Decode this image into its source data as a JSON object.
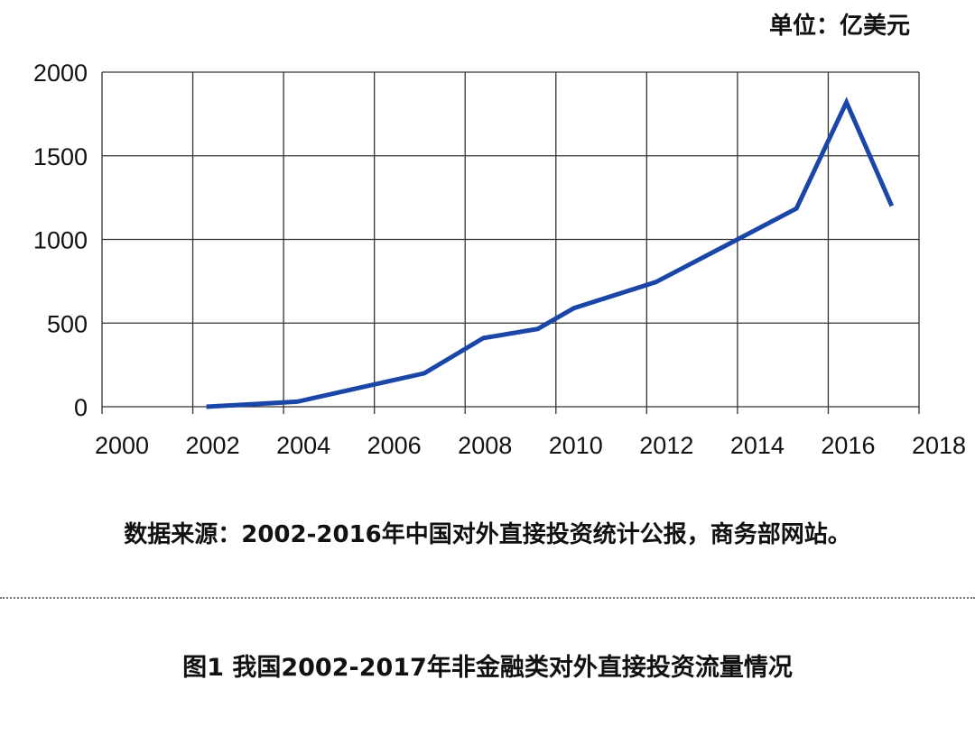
{
  "unit_label": "单位：亿美元",
  "source_note": "数据来源：2002-2016年中国对外直接投资统计公报，商务部网站。",
  "figure_caption": "图1   我国2002-2017年非金融类对外直接投资流量情况",
  "colors": {
    "line": "#1a46a8",
    "grid": "#333333"
  },
  "chart_data": {
    "type": "line",
    "title": "",
    "xlabel": "",
    "ylabel": "",
    "xlim": [
      2000,
      2018
    ],
    "ylim": [
      0,
      2000
    ],
    "grid": true,
    "x_ticks": [
      "2000",
      "2002",
      "2004",
      "2006",
      "2008",
      "2010",
      "2012",
      "2014",
      "2016",
      "2018"
    ],
    "y_ticks": [
      "0",
      "500",
      "1000",
      "1500",
      "2000"
    ],
    "series": [
      {
        "x": [
          2002.3,
          2004.3,
          2007.1,
          2008.4,
          2009.6,
          2010.4,
          2012.2,
          2014.0,
          2015.3,
          2016.4,
          2017.4
        ],
        "values": [
          0,
          30,
          200,
          410,
          465,
          590,
          745,
          1000,
          1185,
          1820,
          1200
        ]
      }
    ]
  }
}
